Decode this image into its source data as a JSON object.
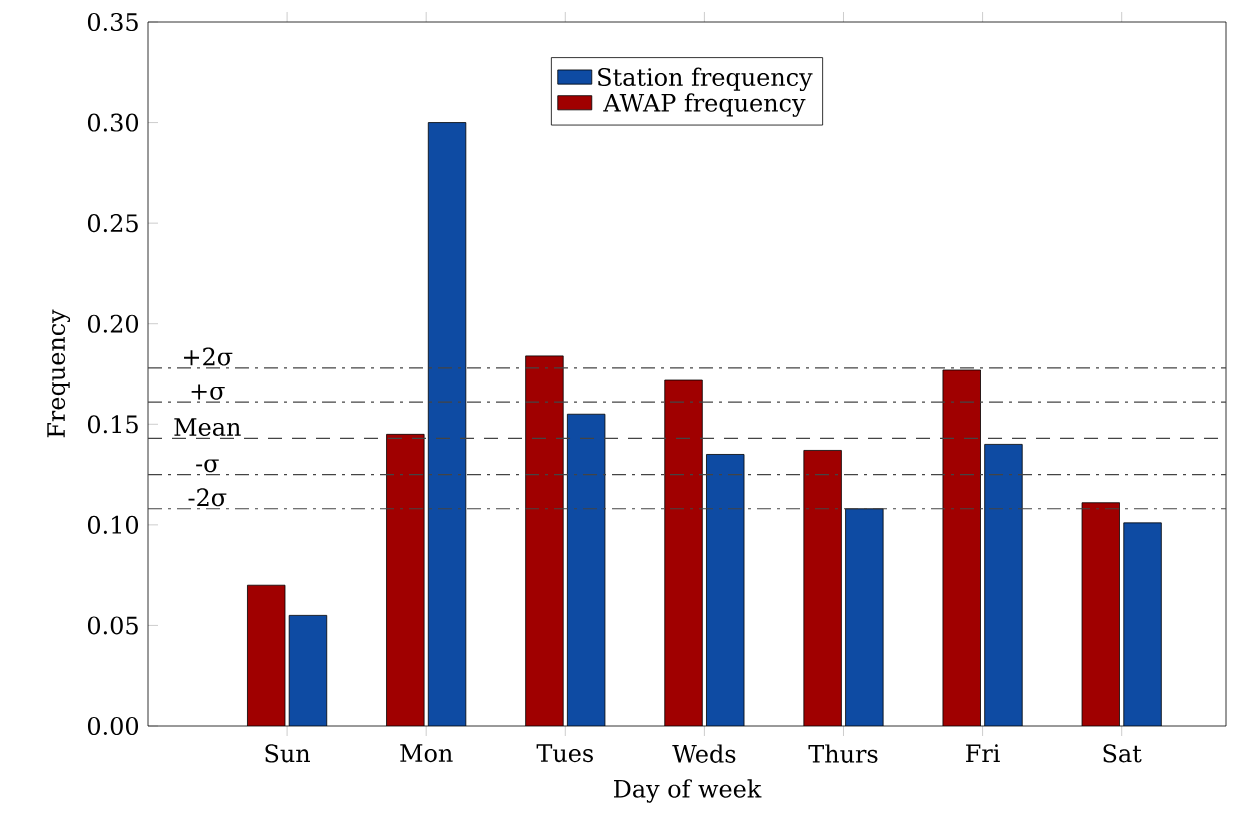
{
  "chart_data": {
    "type": "bar",
    "xlabel": "Day of week",
    "ylabel": "Frequency",
    "categories": [
      "Sun",
      "Mon",
      "Tues",
      "Weds",
      "Thurs",
      "Fri",
      "Sat"
    ],
    "series": [
      {
        "name": "AWAP frequency",
        "color": "#a00000",
        "values": [
          0.07,
          0.145,
          0.184,
          0.172,
          0.137,
          0.177,
          0.111
        ]
      },
      {
        "name": "Station frequency",
        "color": "#0e4ba3",
        "values": [
          0.055,
          0.3,
          0.155,
          0.135,
          0.108,
          0.14,
          0.101
        ]
      }
    ],
    "ylim": [
      0,
      0.35
    ],
    "yticks": [
      {
        "value": 0,
        "label": "0.00"
      },
      {
        "value": 0.05,
        "label": "0.05"
      },
      {
        "value": 0.1,
        "label": "0.10"
      },
      {
        "value": 0.15,
        "label": "0.15"
      },
      {
        "value": 0.2,
        "label": "0.20"
      },
      {
        "value": 0.25,
        "label": "0.25"
      },
      {
        "value": 0.3,
        "label": "0.30"
      },
      {
        "value": 0.35,
        "label": "0.35"
      }
    ],
    "ref_lines": [
      {
        "axis": "y",
        "value": 0.178,
        "label": "+2σ",
        "color": "#444444",
        "line_style": "dashdot"
      },
      {
        "axis": "y",
        "value": 0.161,
        "label": "+σ",
        "color": "#444444",
        "line_style": "dashdot"
      },
      {
        "axis": "y",
        "value": 0.143,
        "label": "Mean",
        "color": "#444444",
        "line_style": "dashed"
      },
      {
        "axis": "y",
        "value": 0.125,
        "label": "-σ",
        "color": "#444444",
        "line_style": "dashdot"
      },
      {
        "axis": "y",
        "value": 0.108,
        "label": "-2σ",
        "color": "#444444",
        "line_style": "dashdot"
      }
    ],
    "legend": "top",
    "grid": false
  }
}
